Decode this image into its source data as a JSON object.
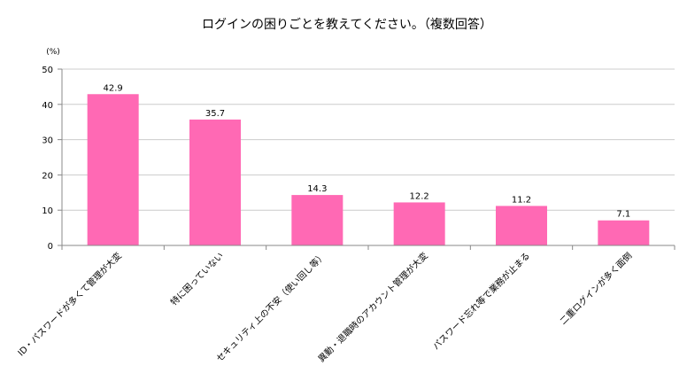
{
  "chart_data": {
    "type": "bar",
    "title": "ログインの困りごとを教えてください。（複数回答）",
    "unit_label": "(%)",
    "categories": [
      "ID・パスワードが多くて管理が大変",
      "特に困っていない",
      "セキュリティ上の不安（使い回し等）",
      "異動・退職時のアカウント管理が大変",
      "パスワード忘れ等で業務が止まる",
      "二重ログインが多く面倒"
    ],
    "values": [
      42.9,
      35.7,
      14.3,
      12.2,
      11.2,
      7.1
    ],
    "value_labels": [
      "42.9",
      "35.7",
      "14.3",
      "12.2",
      "11.2",
      "7.1"
    ],
    "y_ticks": [
      "0",
      "10",
      "20",
      "30",
      "40",
      "50"
    ],
    "ylim": [
      0,
      50
    ],
    "grid": true,
    "legend": "none",
    "bar_color": "#ff69b4",
    "grid_color": "#cccccc"
  }
}
